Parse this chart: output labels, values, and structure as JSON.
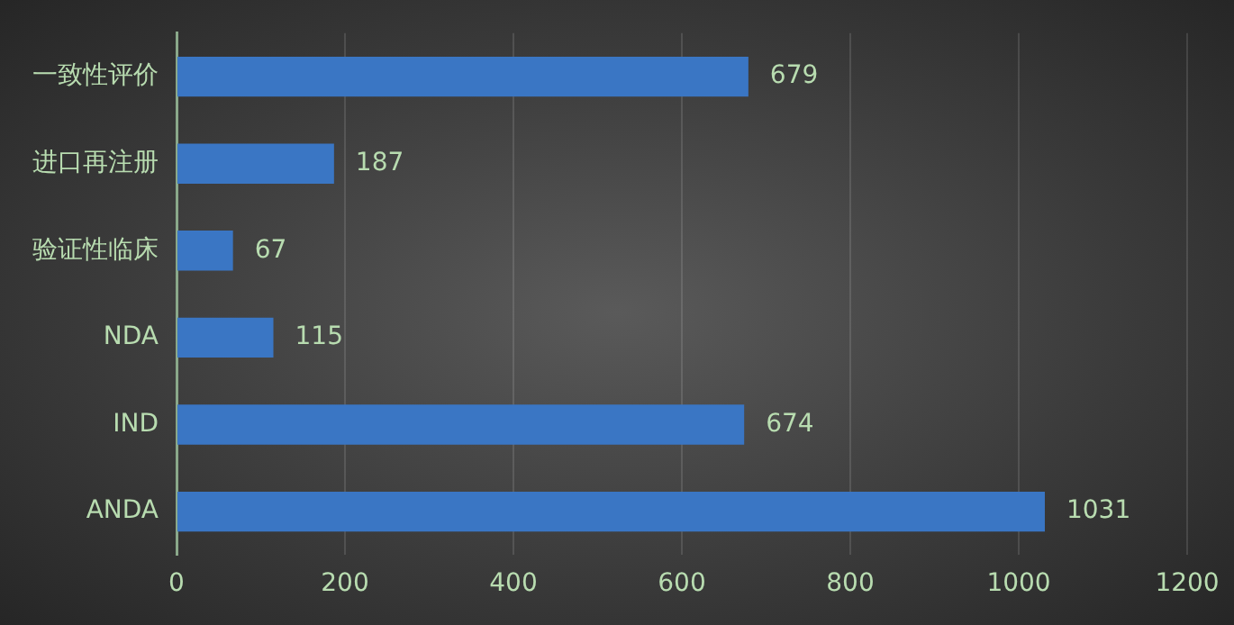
{
  "chart_data": {
    "type": "bar",
    "orientation": "horizontal",
    "categories": [
      "一致性评价",
      "进口再注册",
      "验证性临床",
      "NDA",
      "IND",
      "ANDA"
    ],
    "values": [
      679,
      187,
      67,
      115,
      674,
      1031
    ],
    "color": "#3a76c4",
    "xlim": [
      0,
      1200
    ],
    "xticks": [
      0,
      200,
      400,
      600,
      800,
      1000,
      1200
    ],
    "grid": "x",
    "data_labels": true,
    "legend": false
  }
}
